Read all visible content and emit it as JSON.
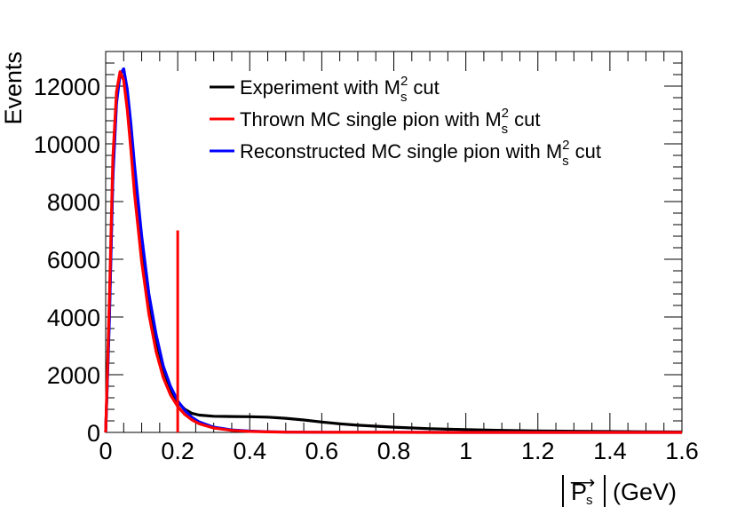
{
  "chart_data": {
    "type": "line",
    "title": "",
    "xlabel": {
      "main": "P",
      "sub": "s",
      "unit": "(GeV)"
    },
    "ylabel": "Events",
    "xlim": [
      0,
      1.6
    ],
    "ylim": [
      0,
      13200
    ],
    "xticks": [
      0,
      0.2,
      0.4,
      0.6,
      0.8,
      1,
      1.2,
      1.4,
      1.6
    ],
    "xtick_labels": [
      "0",
      "0.2",
      "0.4",
      "0.6",
      "0.8",
      "1",
      "1.2",
      "1.4",
      "1.6"
    ],
    "yticks": [
      0,
      2000,
      4000,
      6000,
      8000,
      10000,
      12000
    ],
    "ytick_labels": [
      "0",
      "2000",
      "4000",
      "6000",
      "8000",
      "10000",
      "12000"
    ],
    "grid": false,
    "legend_position": "top-right",
    "annotations": [
      {
        "type": "vertical-cut-line",
        "x": 0.2,
        "y_from": 0,
        "y_to": 7000,
        "color": "#ff0000"
      }
    ],
    "series": [
      {
        "name": "Experiment with M_s^2 cut",
        "legend": {
          "before": "Experiment with M",
          "sub": "s",
          "sup": "2",
          "after": " cut"
        },
        "color": "#000000",
        "x": [
          0,
          0.01,
          0.02,
          0.03,
          0.04,
          0.05,
          0.06,
          0.07,
          0.08,
          0.1,
          0.12,
          0.14,
          0.16,
          0.18,
          0.2,
          0.22,
          0.24,
          0.26,
          0.3,
          0.35,
          0.4,
          0.45,
          0.5,
          0.55,
          0.6,
          0.65,
          0.7,
          0.8,
          0.9,
          1.0,
          1.1,
          1.2,
          1.3,
          1.4,
          1.5,
          1.6
        ],
        "values": [
          0,
          4000,
          9000,
          11500,
          12400,
          12600,
          11800,
          10500,
          9000,
          6500,
          4600,
          3200,
          2200,
          1500,
          1050,
          800,
          660,
          600,
          560,
          550,
          545,
          530,
          490,
          430,
          360,
          300,
          250,
          180,
          130,
          95,
          70,
          50,
          40,
          30,
          20,
          15
        ]
      },
      {
        "name": "Thrown MC single pion with M_s^2 cut",
        "legend": {
          "before": "Thrown MC single pion with M",
          "sub": "s",
          "sup": "2",
          "after": " cut"
        },
        "color": "#ff0000",
        "x": [
          0,
          0.01,
          0.02,
          0.03,
          0.04,
          0.05,
          0.06,
          0.07,
          0.08,
          0.1,
          0.12,
          0.14,
          0.16,
          0.18,
          0.2,
          0.22,
          0.24,
          0.26,
          0.3,
          0.35,
          0.4,
          0.45,
          0.5,
          0.6,
          0.7,
          0.8,
          1.0,
          1.2,
          1.4,
          1.6
        ],
        "values": [
          0,
          4500,
          9500,
          11800,
          12500,
          12200,
          11200,
          9800,
          8300,
          5900,
          4100,
          2800,
          1900,
          1300,
          900,
          620,
          430,
          300,
          150,
          70,
          35,
          20,
          10,
          5,
          3,
          2,
          1,
          0,
          0,
          0
        ]
      },
      {
        "name": "Reconstructed MC single pion with M_s^2 cut",
        "legend": {
          "before": "Reconstructed MC single pion with M",
          "sub": "s",
          "sup": "2",
          "after": " cut"
        },
        "color": "#0000ff",
        "x": [
          0,
          0.01,
          0.02,
          0.03,
          0.04,
          0.05,
          0.06,
          0.07,
          0.08,
          0.1,
          0.12,
          0.14,
          0.16,
          0.18,
          0.2,
          0.22,
          0.24,
          0.26,
          0.3,
          0.35,
          0.4,
          0.45,
          0.5,
          0.6,
          0.7,
          0.8,
          1.0,
          1.2,
          1.4,
          1.6
        ],
        "values": [
          0,
          3800,
          8800,
          11400,
          12400,
          12600,
          11900,
          10700,
          9300,
          6800,
          4800,
          3400,
          2300,
          1600,
          1100,
          760,
          520,
          360,
          180,
          85,
          45,
          25,
          12,
          6,
          3,
          2,
          1,
          0,
          0,
          0
        ]
      }
    ]
  }
}
